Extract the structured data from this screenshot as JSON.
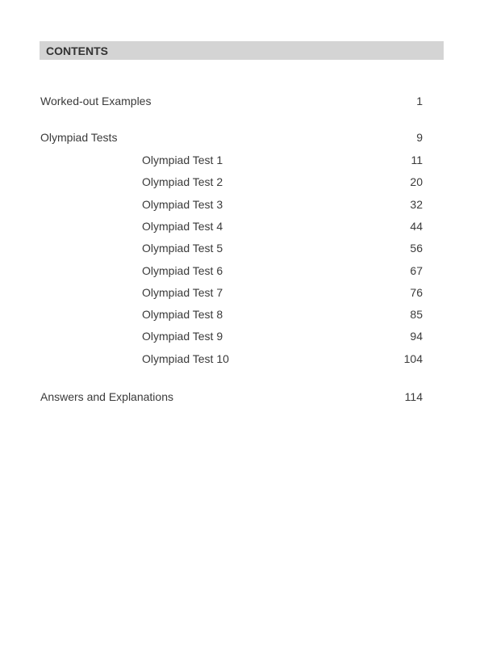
{
  "heading": "CONTENTS",
  "entries": [
    {
      "title": "Worked-out Examples",
      "page": "1"
    },
    {
      "title": "Olympiad Tests",
      "page": "9"
    },
    {
      "title": "Answers and Explanations",
      "page": "114"
    }
  ],
  "subentries": [
    {
      "title": "Olympiad Test 1",
      "page": "11"
    },
    {
      "title": "Olympiad Test 2",
      "page": "20"
    },
    {
      "title": "Olympiad Test 3",
      "page": "32"
    },
    {
      "title": "Olympiad Test 4",
      "page": "44"
    },
    {
      "title": "Olympiad Test 5",
      "page": "56"
    },
    {
      "title": "Olympiad Test 6",
      "page": "67"
    },
    {
      "title": "Olympiad Test 7",
      "page": "76"
    },
    {
      "title": "Olympiad Test 8",
      "page": "85"
    },
    {
      "title": "Olympiad Test 9",
      "page": "94"
    },
    {
      "title": "Olympiad Test 10",
      "page": "104"
    }
  ]
}
